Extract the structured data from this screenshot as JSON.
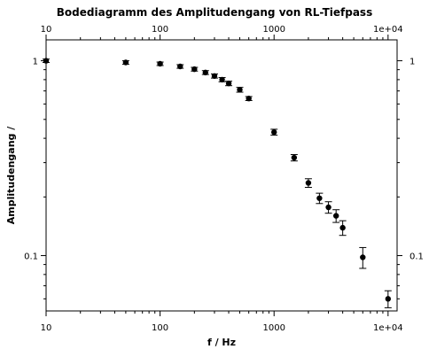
{
  "chart_data": {
    "type": "scatter",
    "title": "Bodediagramm des Amplitudengang von RL-Tiefpass",
    "xlabel": "f / Hz",
    "ylabel": "Amplitudengang /",
    "xscale": "log",
    "yscale": "log",
    "xlim": [
      10,
      12000
    ],
    "ylim": [
      0.052,
      1.28
    ],
    "grid": false,
    "x_ticks": [
      {
        "value": 10,
        "label": "10"
      },
      {
        "value": 100,
        "label": "100"
      },
      {
        "value": 1000,
        "label": "1000"
      },
      {
        "value": 10000,
        "label": "1e+04"
      }
    ],
    "y_ticks": [
      {
        "value": 0.1,
        "label": "0.1"
      },
      {
        "value": 1,
        "label": "1"
      }
    ],
    "series": [
      {
        "marker_color": "#000000",
        "points": [
          {
            "x": 10,
            "y": 1.0,
            "yerr": 0.02
          },
          {
            "x": 50,
            "y": 0.98,
            "yerr": 0.02
          },
          {
            "x": 100,
            "y": 0.965,
            "yerr": 0.02
          },
          {
            "x": 150,
            "y": 0.935,
            "yerr": 0.02
          },
          {
            "x": 200,
            "y": 0.905,
            "yerr": 0.02
          },
          {
            "x": 250,
            "y": 0.87,
            "yerr": 0.02
          },
          {
            "x": 300,
            "y": 0.835,
            "yerr": 0.02
          },
          {
            "x": 350,
            "y": 0.8,
            "yerr": 0.02
          },
          {
            "x": 400,
            "y": 0.765,
            "yerr": 0.02
          },
          {
            "x": 500,
            "y": 0.71,
            "yerr": 0.02
          },
          {
            "x": 600,
            "y": 0.64,
            "yerr": 0.015
          },
          {
            "x": 1000,
            "y": 0.43,
            "yerr": 0.015
          },
          {
            "x": 1500,
            "y": 0.318,
            "yerr": 0.012
          },
          {
            "x": 2000,
            "y": 0.236,
            "yerr": 0.012
          },
          {
            "x": 2500,
            "y": 0.197,
            "yerr": 0.012
          },
          {
            "x": 3000,
            "y": 0.177,
            "yerr": 0.012
          },
          {
            "x": 3500,
            "y": 0.16,
            "yerr": 0.012
          },
          {
            "x": 4000,
            "y": 0.139,
            "yerr": 0.012
          },
          {
            "x": 6000,
            "y": 0.098,
            "yerr": 0.012
          },
          {
            "x": 10000,
            "y": 0.06,
            "yerr": 0.006
          }
        ]
      }
    ]
  }
}
